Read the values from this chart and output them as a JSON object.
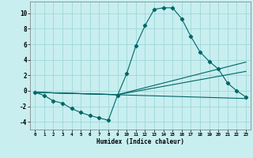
{
  "xlabel": "Humidex (Indice chaleur)",
  "bg_color": "#c8eef0",
  "line_color": "#006666",
  "grid_color": "#a0d8d8",
  "xlim": [
    -0.5,
    23.5
  ],
  "ylim": [
    -5.0,
    11.5
  ],
  "yticks": [
    -4,
    -2,
    0,
    2,
    4,
    6,
    8,
    10
  ],
  "xticks": [
    0,
    1,
    2,
    3,
    4,
    5,
    6,
    7,
    8,
    9,
    10,
    11,
    12,
    13,
    14,
    15,
    16,
    17,
    18,
    19,
    20,
    21,
    22,
    23
  ],
  "series1_x": [
    0,
    1,
    2,
    3,
    4,
    5,
    6,
    7,
    8,
    9,
    10,
    11,
    12,
    13,
    14,
    15,
    16,
    17,
    18,
    19,
    20,
    21,
    22,
    23
  ],
  "series1_y": [
    -0.2,
    -0.6,
    -1.3,
    -1.6,
    -2.3,
    -2.8,
    -3.2,
    -3.5,
    -3.8,
    -0.6,
    2.2,
    5.8,
    8.4,
    10.5,
    10.7,
    10.7,
    9.3,
    7.0,
    5.0,
    3.8,
    2.8,
    1.0,
    0.0,
    -0.8
  ],
  "series2_x": [
    0,
    23
  ],
  "series2_y": [
    -0.2,
    -1.0
  ],
  "series3_x": [
    0,
    9,
    23
  ],
  "series3_y": [
    -0.2,
    -0.5,
    3.7
  ],
  "series4_x": [
    0,
    9,
    23
  ],
  "series4_y": [
    -0.2,
    -0.5,
    2.5
  ]
}
